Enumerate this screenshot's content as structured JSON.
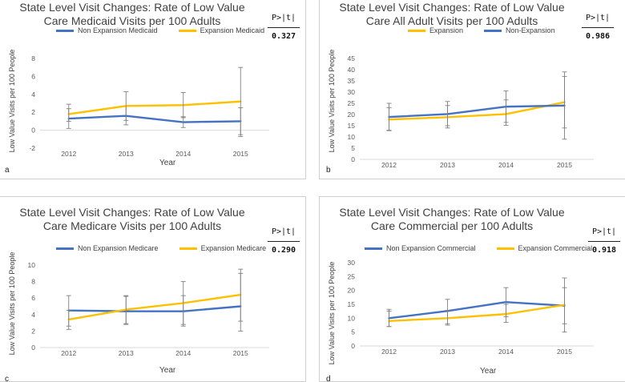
{
  "chart_data": [
    {
      "type": "line",
      "panel": "a",
      "title": [
        "State Level Visit Changes: Rate of Low Value",
        "Care Medicaid Visits per 100 Adults"
      ],
      "ylabel": "Low Value Visits per 100 People",
      "xlabel": "Year",
      "categories": [
        "2012",
        "2013",
        "2014",
        "2015"
      ],
      "yticks": [
        -2,
        0,
        2,
        4,
        6,
        8
      ],
      "ylim": [
        -2,
        8
      ],
      "pvalue_label": "P>|t|",
      "pvalue": "0.327",
      "legend_placement": "top",
      "grid": false,
      "series": [
        {
          "name": "Non Expansion  Medicaid",
          "color": "#4472C4",
          "values": [
            1.3,
            1.6,
            0.9,
            1.0
          ],
          "lower": [
            0.2,
            0.6,
            0.3,
            -0.5
          ],
          "upper": [
            2.4,
            2.7,
            1.5,
            2.5
          ]
        },
        {
          "name": "Expansion Medicaid",
          "color": "#FFC000",
          "values": [
            1.8,
            2.7,
            2.8,
            3.2
          ],
          "lower": [
            1.0,
            1.1,
            1.4,
            -0.7
          ],
          "upper": [
            2.9,
            4.3,
            4.2,
            7.0
          ]
        }
      ]
    },
    {
      "type": "line",
      "panel": "b",
      "title": [
        "State Level Visit Changes: Rate of Low Value",
        "Care All Adult Visits per 100 Adults"
      ],
      "ylabel": "Low Value Visits per 100 People",
      "xlabel": "",
      "categories": [
        "2012",
        "2013",
        "2014",
        "2015"
      ],
      "yticks": [
        0,
        5,
        10,
        15,
        20,
        25,
        30,
        35,
        40,
        45
      ],
      "ylim": [
        0,
        45
      ],
      "pvalue_label": "P>|t|",
      "pvalue": "0.986",
      "legend_placement": "top",
      "grid": false,
      "series": [
        {
          "name": "Expansion",
          "color": "#FFC000",
          "values": [
            17.8,
            18.8,
            20.2,
            25.5
          ],
          "lower": [
            13.0,
            14.0,
            15.2,
            9.0
          ],
          "upper": [
            23.0,
            24.0,
            26.5,
            39.0
          ]
        },
        {
          "name": "Non-Expansion",
          "color": "#4472C4",
          "values": [
            18.9,
            20.2,
            23.5,
            24.0
          ],
          "lower": [
            12.8,
            15.0,
            16.5,
            14.0
          ],
          "upper": [
            25.0,
            25.8,
            30.5,
            37.0
          ]
        }
      ]
    },
    {
      "type": "line",
      "panel": "c",
      "title": [
        "State Level Visit Changes: Rate of Low Value",
        "Care Medicare Visits per 100 Adults"
      ],
      "ylabel": "Low Value Visits per 100 People",
      "xlabel": "Year",
      "categories": [
        "2012",
        "2013",
        "2014",
        "2015"
      ],
      "yticks": [
        0,
        2,
        4,
        6,
        8,
        10
      ],
      "ylim": [
        0,
        10
      ],
      "pvalue_label": "P>|t|",
      "pvalue": "0.290",
      "legend_placement": "top",
      "grid": false,
      "series": [
        {
          "name": "Non Expansion Medicare",
          "color": "#4472C4",
          "values": [
            4.5,
            4.4,
            4.4,
            5.0
          ],
          "lower": [
            2.6,
            2.8,
            2.6,
            3.2
          ],
          "upper": [
            6.3,
            6.2,
            6.3,
            9.5
          ]
        },
        {
          "name": "Expansion Medicare",
          "color": "#FFC000",
          "values": [
            3.4,
            4.6,
            5.4,
            6.4
          ],
          "lower": [
            2.2,
            2.9,
            2.8,
            2.0
          ],
          "upper": [
            4.5,
            6.3,
            8.0,
            9.0
          ]
        }
      ]
    },
    {
      "type": "line",
      "panel": "d",
      "title": [
        "State Level Visit Changes: Rate of Low Value",
        "Care Commercial per 100 Adults"
      ],
      "ylabel": "Low Value Visits per 100 People",
      "xlabel": "Year",
      "categories": [
        "2012",
        "2013",
        "2014",
        "2015"
      ],
      "yticks": [
        0,
        5,
        10,
        15,
        20,
        25,
        30
      ],
      "ylim": [
        0,
        30
      ],
      "pvalue_label": "P>|t|",
      "pvalue": "0.918",
      "legend_placement": "top",
      "grid": false,
      "series": [
        {
          "name": "Non Expansion Commercial",
          "color": "#4472C4",
          "values": [
            10.0,
            12.6,
            15.8,
            14.5
          ],
          "lower": [
            7.0,
            8.0,
            10.5,
            8.0
          ],
          "upper": [
            12.5,
            16.8,
            21.0,
            21.0
          ]
        },
        {
          "name": "Expansion Commercial",
          "color": "#FFC000",
          "values": [
            9.0,
            10.0,
            11.5,
            14.8
          ],
          "lower": [
            7.0,
            7.5,
            8.5,
            5.0
          ],
          "upper": [
            13.2,
            12.8,
            15.0,
            24.5
          ]
        }
      ]
    }
  ]
}
